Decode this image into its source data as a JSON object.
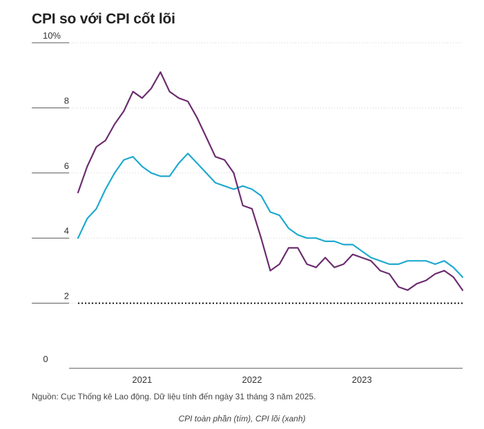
{
  "chart_data": {
    "type": "line",
    "title": "CPI so với CPI cốt lõi",
    "source": "Nguồn: Cục Thống kê Lao động. Dữ liệu tính đến ngày 31 tháng 3 năm 2025.",
    "legend_caption": "CPI toàn phần (tím), CPI lõi (xanh)",
    "x_start": "2020-06",
    "ylim": [
      0,
      10
    ],
    "y_ticks": [
      {
        "value": 10,
        "label": "10%"
      },
      {
        "value": 8,
        "label": "8"
      },
      {
        "value": 6,
        "label": "6"
      },
      {
        "value": 4,
        "label": "4"
      },
      {
        "value": 2,
        "label": "2"
      },
      {
        "value": 0,
        "label": "0"
      }
    ],
    "x_ticks": [
      {
        "index": 7,
        "label": "2021"
      },
      {
        "index": 19,
        "label": "2022"
      },
      {
        "index": 31,
        "label": "2023"
      }
    ],
    "reference_line": {
      "value": 2,
      "style": "dotted"
    },
    "series": [
      {
        "color": "#6b2c6f",
        "values": [
          5.4,
          6.2,
          6.8,
          7.0,
          7.5,
          7.9,
          8.5,
          8.3,
          8.6,
          9.1,
          8.5,
          8.3,
          8.2,
          7.7,
          7.1,
          6.5,
          6.4,
          6.0,
          5.0,
          4.9,
          4.0,
          3.0,
          3.2,
          3.7,
          3.7,
          3.2,
          3.1,
          3.4,
          3.1,
          3.2,
          3.5,
          3.4,
          3.3,
          3.0,
          2.9,
          2.5,
          2.4,
          2.6,
          2.7,
          2.9,
          3.0,
          2.8,
          2.4
        ]
      },
      {
        "color": "#1ea9cf",
        "values": [
          4.0,
          4.6,
          4.9,
          5.5,
          6.0,
          6.4,
          6.5,
          6.2,
          6.0,
          5.9,
          5.9,
          6.3,
          6.6,
          6.3,
          6.0,
          5.7,
          5.6,
          5.5,
          5.6,
          5.5,
          5.3,
          4.8,
          4.7,
          4.3,
          4.1,
          4.0,
          4.0,
          3.9,
          3.9,
          3.8,
          3.8,
          3.6,
          3.4,
          3.3,
          3.2,
          3.2,
          3.3,
          3.3,
          3.3,
          3.2,
          3.3,
          3.1,
          2.8
        ]
      }
    ]
  }
}
